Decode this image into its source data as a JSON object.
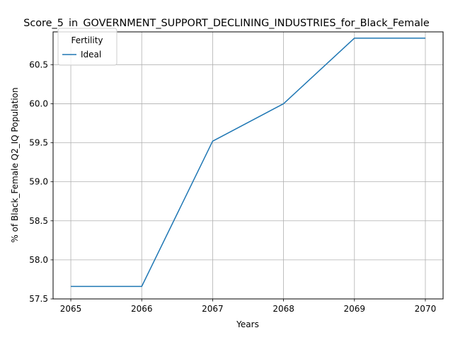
{
  "chart_data": {
    "type": "line",
    "title": "Score_5_in_GOVERNMENT_SUPPORT_DECLINING_INDUSTRIES_for_Black_Female",
    "xlabel": "Years",
    "ylabel": "% of Black_Female Q2_IQ Population",
    "x": [
      2065,
      2066,
      2067,
      2068,
      2069,
      2070
    ],
    "xticks": [
      "2065",
      "2066",
      "2067",
      "2068",
      "2069",
      "2070"
    ],
    "yticks": [
      "57.5",
      "58.0",
      "58.5",
      "59.0",
      "59.5",
      "60.0",
      "60.5"
    ],
    "ylim": [
      57.5,
      60.92
    ],
    "xlim": [
      2064.75,
      2070.25
    ],
    "grid": true,
    "legend": {
      "title": "Fertility",
      "placement": "top-left"
    },
    "series": [
      {
        "name": "Ideal",
        "color": "#1f77b4",
        "values": [
          57.66,
          57.66,
          59.52,
          60.0,
          60.84,
          60.84
        ]
      }
    ]
  }
}
